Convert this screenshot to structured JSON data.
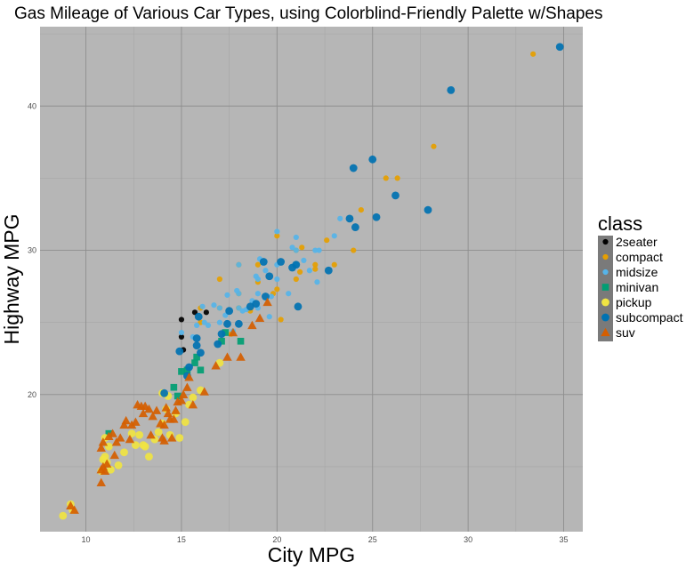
{
  "chart_data": {
    "type": "scatter",
    "title": "Gas Mileage of Various Car Types, using Colorblind-Friendly Palette w/Shapes",
    "xlabel": "City MPG",
    "ylabel": "Highway MPG",
    "xlim": [
      7.6,
      36.0
    ],
    "ylim": [
      10.5,
      45.5
    ],
    "xticks": [
      10,
      15,
      20,
      25,
      30,
      35
    ],
    "yticks": [
      20,
      30,
      40
    ],
    "grid": true,
    "legend": {
      "title": "class",
      "placement": "right"
    },
    "series": [
      {
        "name": "2seater",
        "color": "#000000",
        "shape": "circle-small",
        "points": [
          [
            15.0,
            24.0
          ],
          [
            15.0,
            25.2
          ],
          [
            15.7,
            25.7
          ],
          [
            16.3,
            25.7
          ],
          [
            15.1,
            23.1
          ]
        ]
      },
      {
        "name": "compact",
        "color": "#E69F00",
        "shape": "circle-small",
        "points": [
          [
            18.0,
            29.0
          ],
          [
            21.0,
            29.0
          ],
          [
            20.0,
            31.0
          ],
          [
            21.0,
            30.0
          ],
          [
            16.0,
            26.0
          ],
          [
            18.0,
            26.0
          ],
          [
            18.0,
            27.0
          ],
          [
            18.0,
            26.0
          ],
          [
            16.0,
            25.0
          ],
          [
            17.0,
            28.0
          ],
          [
            19.0,
            29.0
          ],
          [
            21.0,
            28.0
          ],
          [
            21.0,
            29.0
          ],
          [
            22.0,
            29.0
          ],
          [
            23.0,
            29.0
          ],
          [
            24.0,
            30.0
          ],
          [
            24.4,
            32.8
          ],
          [
            26.3,
            35.0
          ],
          [
            25.7,
            35.0
          ],
          [
            28.2,
            37.2
          ],
          [
            33.4,
            43.6
          ],
          [
            22.0,
            28.7
          ],
          [
            21.3,
            30.2
          ],
          [
            20.2,
            25.2
          ],
          [
            19.8,
            27.0
          ],
          [
            17.0,
            26.0
          ],
          [
            18.6,
            25.8
          ],
          [
            20.0,
            27.3
          ],
          [
            22.6,
            30.7
          ],
          [
            21.2,
            28.5
          ],
          [
            17.6,
            24.2
          ],
          [
            19.0,
            27.8
          ]
        ]
      },
      {
        "name": "midsize",
        "color": "#56B4E9",
        "shape": "circle-small",
        "points": [
          [
            18.0,
            29.0
          ],
          [
            19.0,
            27.0
          ],
          [
            20.0,
            28.0
          ],
          [
            21.0,
            30.0
          ],
          [
            20.0,
            31.3
          ],
          [
            19.0,
            26.0
          ],
          [
            17.0,
            26.0
          ],
          [
            18.0,
            27.0
          ],
          [
            17.0,
            25.0
          ],
          [
            18.0,
            26.0
          ],
          [
            19.0,
            28.0
          ],
          [
            20.0,
            29.0
          ],
          [
            21.0,
            29.0
          ],
          [
            22.0,
            30.0
          ],
          [
            23.0,
            31.0
          ],
          [
            21.0,
            30.9
          ],
          [
            19.4,
            28.6
          ],
          [
            18.2,
            25.8
          ],
          [
            17.4,
            26.9
          ],
          [
            16.2,
            25.0
          ],
          [
            16.7,
            26.2
          ],
          [
            15.8,
            24.8
          ],
          [
            17.9,
            27.2
          ],
          [
            19.6,
            25.4
          ],
          [
            20.6,
            27.0
          ],
          [
            21.4,
            29.3
          ],
          [
            23.3,
            32.2
          ],
          [
            22.1,
            27.8
          ],
          [
            18.9,
            28.2
          ],
          [
            16.1,
            26.1
          ],
          [
            15.6,
            24.0
          ],
          [
            17.3,
            25.5
          ],
          [
            18.4,
            25.9
          ],
          [
            19.7,
            26.8
          ],
          [
            20.8,
            30.2
          ],
          [
            22.2,
            30.0
          ],
          [
            17.7,
            24.4
          ],
          [
            16.4,
            24.8
          ],
          [
            19.1,
            29.4
          ],
          [
            21.7,
            28.6
          ],
          [
            15.0,
            24.3
          ],
          [
            18.7,
            26.5
          ]
        ]
      },
      {
        "name": "minivan",
        "color": "#009E73",
        "shape": "square",
        "points": [
          [
            11.2,
            17.3
          ],
          [
            14.8,
            19.9
          ],
          [
            14.6,
            20.5
          ],
          [
            15.0,
            21.6
          ],
          [
            15.3,
            21.7
          ],
          [
            15.7,
            22.2
          ],
          [
            15.8,
            22.6
          ],
          [
            16.0,
            21.7
          ],
          [
            17.1,
            23.7
          ],
          [
            17.3,
            24.3
          ],
          [
            18.1,
            23.7
          ]
        ]
      },
      {
        "name": "pickup",
        "color": "#F0E442",
        "shape": "circle",
        "points": [
          [
            8.8,
            11.6
          ],
          [
            9.3,
            12.0
          ],
          [
            9.2,
            12.4
          ],
          [
            10.8,
            14.7
          ],
          [
            11.1,
            15.3
          ],
          [
            11.0,
            15.7
          ],
          [
            11.3,
            14.8
          ],
          [
            11.2,
            16.4
          ],
          [
            11.0,
            17.0
          ],
          [
            12.0,
            16.0
          ],
          [
            12.6,
            16.5
          ],
          [
            12.8,
            17.2
          ],
          [
            13.1,
            16.4
          ],
          [
            13.3,
            15.7
          ],
          [
            13.6,
            16.9
          ],
          [
            13.8,
            17.4
          ],
          [
            14.0,
            18.0
          ],
          [
            14.2,
            19.0
          ],
          [
            14.3,
            19.9
          ],
          [
            14.0,
            20.1
          ],
          [
            14.7,
            18.7
          ],
          [
            14.9,
            17.0
          ],
          [
            15.2,
            18.1
          ],
          [
            15.4,
            19.3
          ],
          [
            15.6,
            19.8
          ],
          [
            16.0,
            20.3
          ],
          [
            13.0,
            16.5
          ],
          [
            14.4,
            17.2
          ],
          [
            12.4,
            17.3
          ],
          [
            11.7,
            15.1
          ],
          [
            10.9,
            15.5
          ],
          [
            17.0,
            22.2
          ]
        ]
      },
      {
        "name": "subcompact",
        "color": "#0072B2",
        "shape": "circle",
        "points": [
          [
            14.9,
            23.0
          ],
          [
            15.3,
            21.3
          ],
          [
            15.4,
            21.9
          ],
          [
            15.8,
            23.4
          ],
          [
            15.8,
            23.9
          ],
          [
            16.9,
            23.5
          ],
          [
            17.1,
            24.2
          ],
          [
            17.5,
            25.8
          ],
          [
            18.0,
            24.9
          ],
          [
            18.9,
            26.3
          ],
          [
            19.3,
            29.2
          ],
          [
            19.6,
            28.2
          ],
          [
            20.2,
            29.2
          ],
          [
            20.8,
            28.8
          ],
          [
            21.1,
            26.1
          ],
          [
            22.7,
            28.6
          ],
          [
            23.8,
            32.2
          ],
          [
            24.1,
            31.6
          ],
          [
            24.0,
            35.7
          ],
          [
            25.0,
            36.3
          ],
          [
            25.2,
            32.3
          ],
          [
            26.2,
            33.8
          ],
          [
            27.9,
            32.8
          ],
          [
            29.1,
            41.1
          ],
          [
            34.8,
            44.1
          ],
          [
            18.6,
            26.1
          ],
          [
            19.4,
            26.8
          ],
          [
            17.4,
            24.9
          ],
          [
            16.0,
            22.9
          ],
          [
            14.1,
            20.1
          ],
          [
            15.9,
            25.4
          ],
          [
            21.0,
            29.0
          ]
        ]
      },
      {
        "name": "suv",
        "color": "#D55E00",
        "shape": "triangle",
        "points": [
          [
            9.2,
            12.3
          ],
          [
            9.4,
            12.0
          ],
          [
            10.8,
            13.9
          ],
          [
            10.8,
            14.8
          ],
          [
            10.9,
            15.0
          ],
          [
            11.0,
            14.7
          ],
          [
            11.1,
            15.2
          ],
          [
            10.8,
            16.3
          ],
          [
            10.9,
            16.7
          ],
          [
            11.2,
            17.1
          ],
          [
            11.4,
            17.3
          ],
          [
            11.8,
            17.0
          ],
          [
            11.6,
            16.7
          ],
          [
            12.0,
            17.9
          ],
          [
            12.1,
            18.2
          ],
          [
            12.4,
            17.9
          ],
          [
            12.6,
            18.1
          ],
          [
            12.7,
            19.3
          ],
          [
            12.9,
            19.2
          ],
          [
            13.1,
            19.2
          ],
          [
            13.3,
            19.0
          ],
          [
            13.5,
            18.5
          ],
          [
            13.7,
            18.9
          ],
          [
            13.9,
            18.0
          ],
          [
            14.0,
            17.0
          ],
          [
            14.1,
            17.9
          ],
          [
            14.2,
            19.1
          ],
          [
            14.3,
            18.7
          ],
          [
            14.4,
            18.3
          ],
          [
            14.5,
            17.0
          ],
          [
            14.6,
            18.3
          ],
          [
            14.7,
            18.9
          ],
          [
            14.8,
            19.5
          ],
          [
            15.0,
            19.6
          ],
          [
            15.1,
            20.0
          ],
          [
            15.3,
            20.5
          ],
          [
            15.6,
            19.3
          ],
          [
            16.2,
            20.2
          ],
          [
            16.8,
            22.0
          ],
          [
            17.4,
            22.6
          ],
          [
            17.7,
            24.3
          ],
          [
            18.1,
            22.6
          ],
          [
            18.7,
            24.8
          ],
          [
            19.1,
            25.3
          ],
          [
            19.5,
            26.4
          ],
          [
            13.4,
            17.2
          ],
          [
            12.3,
            16.9
          ],
          [
            11.5,
            15.8
          ],
          [
            13.0,
            18.7
          ],
          [
            14.1,
            16.8
          ],
          [
            15.4,
            21.2
          ]
        ]
      }
    ]
  }
}
